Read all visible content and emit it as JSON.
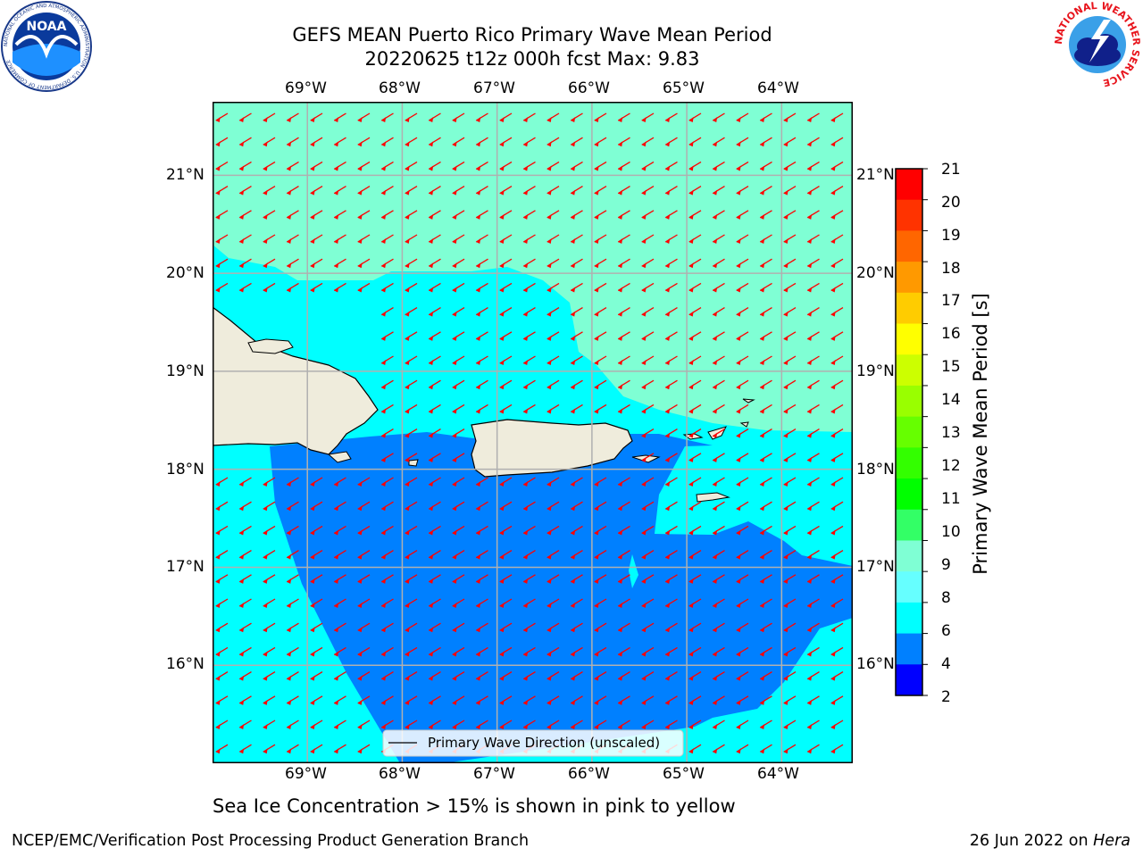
{
  "title": {
    "line1": "GEFS MEAN Puerto Rico Primary Wave Mean Period",
    "line2": "20220625 t12z 000h fcst   Max: 9.83"
  },
  "logos": {
    "left": {
      "text": "NOAA",
      "ring": "NATIONAL OCEANIC AND ATMOSPHERIC ADMINISTRATION · U.S. DEPARTMENT OF COMMERCE"
    },
    "right": {
      "text": "NATIONAL WEATHER SERVICE"
    }
  },
  "map": {
    "lon_labels": [
      "69°W",
      "68°W",
      "67°W",
      "66°W",
      "65°W",
      "64°W"
    ],
    "lat_labels": [
      "21°N",
      "20°N",
      "19°N",
      "18°N",
      "17°N",
      "16°N"
    ],
    "lon_values": [
      -69,
      -68,
      -67,
      -66,
      -65,
      -64
    ],
    "lat_values": [
      21,
      20,
      19,
      18,
      17,
      16
    ],
    "extent": {
      "lon_min": -70,
      "lon_max": -63.25,
      "lat_min": 15,
      "lat_max": 21.75
    },
    "legend": "Primary Wave Direction (unscaled)",
    "arrow_color": "#ff0000",
    "land_color": "#efecdc",
    "colors": {
      "period_8_9": "#7fffd4",
      "period_6_8": "#00ffff",
      "period_4_6": "#0080ff"
    }
  },
  "colorbar": {
    "label": "Primary Wave Mean Period [s]",
    "ticks": [
      "21",
      "20",
      "19",
      "18",
      "17",
      "16",
      "15",
      "14",
      "13",
      "12",
      "11",
      "10",
      "9",
      "8",
      "6",
      "4",
      "2"
    ],
    "colors": [
      "#ff0000",
      "#ff3300",
      "#ff6600",
      "#ff9900",
      "#ffcc00",
      "#ffff00",
      "#ccff00",
      "#99ff00",
      "#66ff00",
      "#33ff00",
      "#00ff00",
      "#33ff66",
      "#7fffd4",
      "#66ffff",
      "#00ffff",
      "#0080ff",
      "#0000ff"
    ]
  },
  "note": "Sea Ice Concentration > 15% is shown in pink to yellow",
  "footer": {
    "left": "NCEP/EMC/Verification Post Processing Product Generation Branch",
    "date": "26 Jun 2022 on",
    "host": "Hera"
  }
}
